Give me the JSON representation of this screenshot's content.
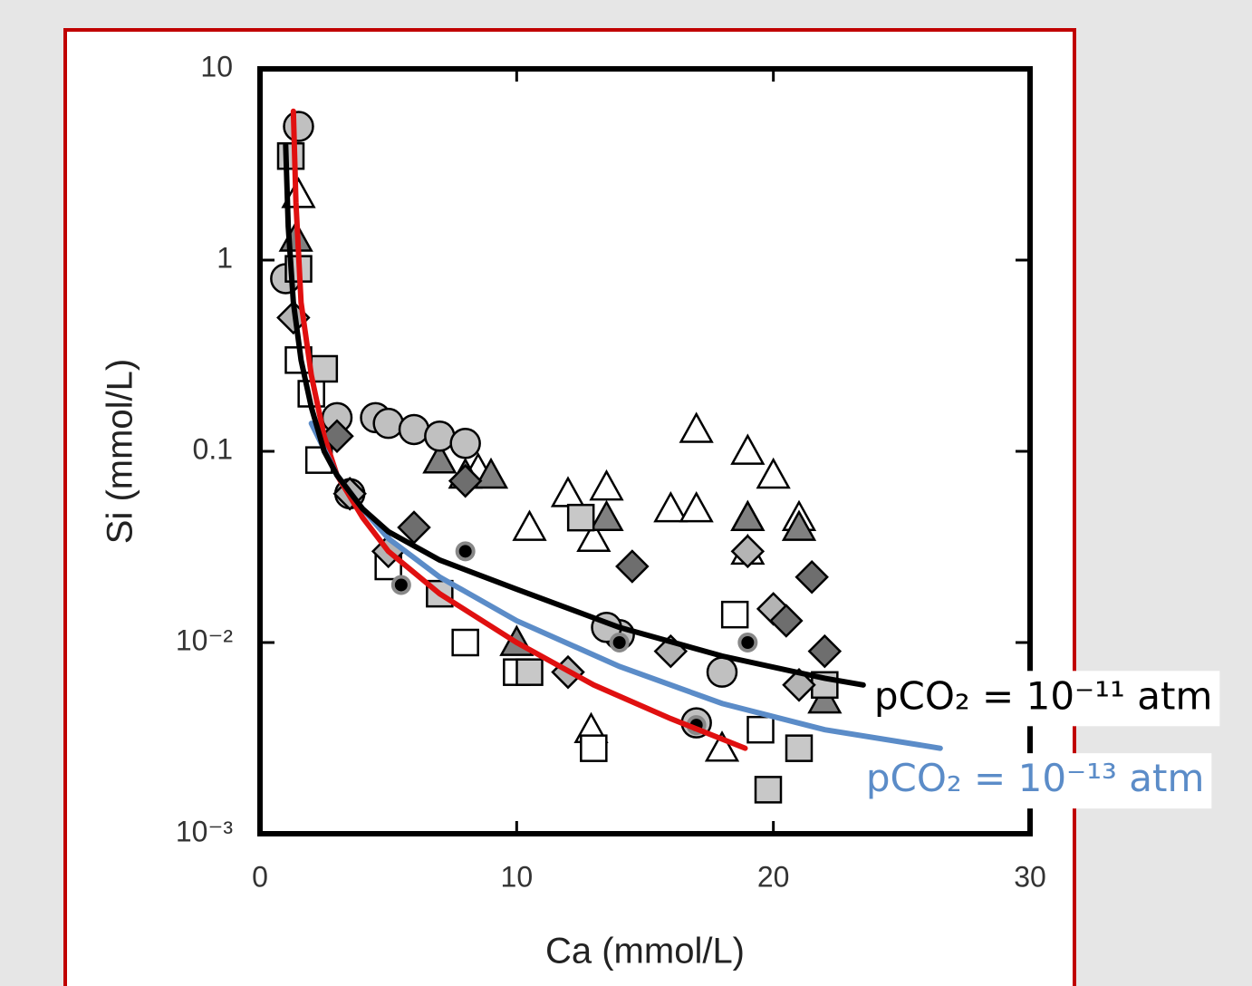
{
  "chart_data": {
    "type": "scatter",
    "x_label": "Ca (mmol/L)",
    "y_label": "Si (mmol/L)",
    "xlim": [
      0,
      30
    ],
    "xticks": [
      0,
      10,
      20,
      30
    ],
    "ylim": [
      0.001,
      10
    ],
    "ylog": true,
    "yticks": [
      {
        "value": 0.001,
        "label": "10⁻³"
      },
      {
        "value": 0.01,
        "label": "10⁻²"
      },
      0.1,
      1,
      10
    ],
    "series": [
      {
        "kind": "marker",
        "marker": "triangle",
        "color": "#ffffff",
        "x": [
          12,
          13.5,
          17,
          19,
          20,
          16,
          17,
          10.5,
          13,
          19,
          21,
          1.5,
          12.9,
          18,
          19,
          8.5
        ],
        "y": [
          0.06,
          0.065,
          0.13,
          0.1,
          0.075,
          0.05,
          0.05,
          0.04,
          0.035,
          0.045,
          0.045,
          2.2,
          0.0035,
          0.0028,
          0.03,
          0.08
        ]
      },
      {
        "kind": "marker",
        "marker": "triangle",
        "color": "#808080",
        "x": [
          8,
          9,
          13.5,
          19,
          21,
          7,
          10,
          22,
          1.4
        ],
        "y": [
          0.075,
          0.075,
          0.045,
          0.045,
          0.04,
          0.09,
          0.01,
          0.005,
          1.3
        ]
      },
      {
        "kind": "marker",
        "marker": "circle",
        "color": "#c0c0c0",
        "x": [
          4.5,
          5,
          6,
          7,
          8,
          3,
          18,
          14,
          17,
          1,
          1.5,
          3.5,
          13.5
        ],
        "y": [
          0.15,
          0.14,
          0.13,
          0.12,
          0.11,
          0.15,
          0.007,
          0.011,
          0.0038,
          0.8,
          5,
          0.06,
          0.012
        ]
      },
      {
        "kind": "marker",
        "marker": "square",
        "color": "#ffffff",
        "x": [
          1.5,
          2,
          8,
          10,
          13,
          18.5,
          19.5,
          2.3,
          5
        ],
        "y": [
          0.3,
          0.2,
          0.01,
          0.007,
          0.0028,
          0.014,
          0.0035,
          0.09,
          0.025
        ]
      },
      {
        "kind": "marker",
        "marker": "square",
        "color": "#c8c8c8",
        "x": [
          12.5,
          7,
          21,
          19.8,
          22,
          2.5,
          1.5,
          10.5,
          1.2
        ],
        "y": [
          0.045,
          0.018,
          0.0028,
          0.0017,
          0.006,
          0.27,
          0.9,
          0.007,
          3.5
        ]
      },
      {
        "kind": "marker",
        "marker": "diamond",
        "color": "#b4b4b4",
        "x": [
          12,
          19,
          20,
          16,
          21,
          5,
          3.5,
          1.3
        ],
        "y": [
          0.007,
          0.03,
          0.015,
          0.009,
          0.006,
          0.03,
          0.06,
          0.5
        ]
      },
      {
        "kind": "marker",
        "marker": "diamond",
        "color": "#6e6e6e",
        "x": [
          14.5,
          21.5,
          20.5,
          22,
          8,
          6,
          3
        ],
        "y": [
          0.025,
          0.022,
          0.013,
          0.009,
          0.07,
          0.04,
          0.12
        ]
      },
      {
        "kind": "marker",
        "marker": "dot",
        "color": "#000000",
        "x": [
          5.5,
          14,
          19,
          8,
          17
        ],
        "y": [
          0.02,
          0.01,
          0.01,
          0.03,
          0.0037
        ]
      },
      {
        "kind": "line",
        "color": "#e01010",
        "x": [
          1.3,
          1.4,
          1.6,
          2,
          2.5,
          3,
          4,
          5,
          7,
          10,
          13,
          16,
          18.9
        ],
        "y": [
          6,
          2,
          0.6,
          0.25,
          0.12,
          0.075,
          0.045,
          0.03,
          0.018,
          0.01,
          0.006,
          0.004,
          0.0028
        ]
      },
      {
        "kind": "line",
        "color": "#5b8cc8",
        "name": "pCO₂ = 10⁻¹³ atm",
        "x": [
          2,
          3,
          4,
          5,
          7,
          10,
          14,
          18,
          22,
          26.5
        ],
        "y": [
          0.14,
          0.075,
          0.05,
          0.035,
          0.022,
          0.013,
          0.0075,
          0.0048,
          0.0035,
          0.0028
        ]
      },
      {
        "kind": "line",
        "color": "#000000",
        "name": "pCO₂ = 10⁻¹¹ atm",
        "x": [
          1,
          1.1,
          1.3,
          1.6,
          2,
          2.5,
          3,
          4,
          5,
          7,
          10,
          14,
          18,
          22,
          23.5
        ],
        "y": [
          4,
          1.5,
          0.6,
          0.3,
          0.17,
          0.1,
          0.075,
          0.05,
          0.038,
          0.027,
          0.019,
          0.012,
          0.0085,
          0.0065,
          0.006
        ]
      }
    ]
  }
}
